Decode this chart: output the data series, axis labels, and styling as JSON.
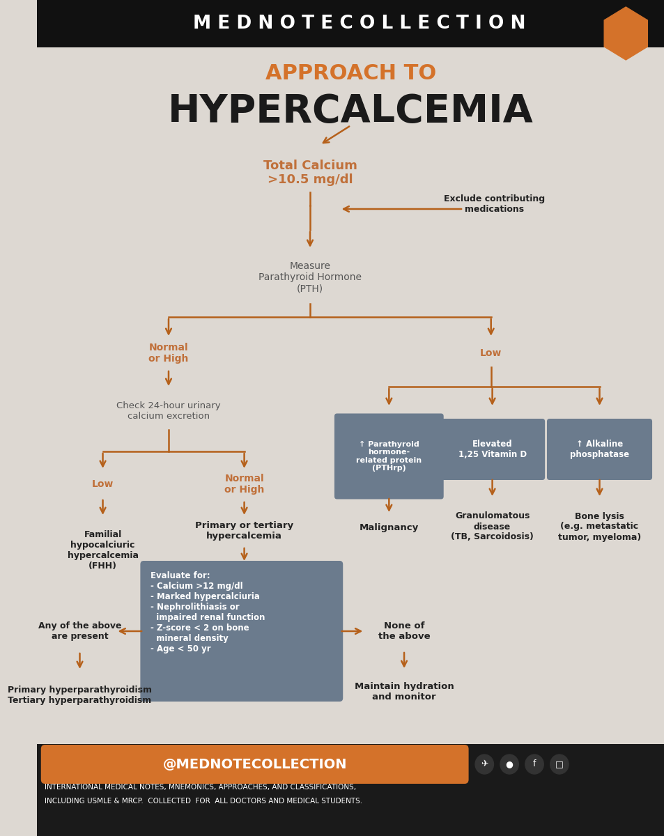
{
  "title_line1": "APPROACH TO",
  "title_line2": "HYPERCALCEMIA",
  "title_line1_color": "#D4722A",
  "title_line2_color": "#1a1a1a",
  "header_bg": "#111111",
  "header_text": "M E D N O T E C O L L E C T I O N",
  "footer_bg": "#1a1a1a",
  "footer_orange_text": "@MEDNOTECOLLECTION",
  "footer_orange_bg": "#D4722A",
  "footer_small_text1": "INTERNATIONAL MEDICAL NOTES, MNEMONICS, APPROACHES, AND CLASSIFICATIONS,",
  "footer_small_text2": "INCLUDING USMLE & MRCP.  COLLECTED  FOR  ALL DOCTORS AND MEDICAL STUDENTS.",
  "arrow_color": "#B5601A",
  "box_fill": "#6B7B8D",
  "box_text_color": "#ffffff",
  "bg_color": "#DDD8D2",
  "node_text_color": "#555555",
  "orange_label_color": "#C0703A",
  "black_label_color": "#222222"
}
